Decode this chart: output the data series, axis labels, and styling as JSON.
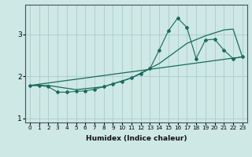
{
  "xlabel": "Humidex (Indice chaleur)",
  "ylabel": "",
  "bg_color": "#cde8e5",
  "grid_color": "#aaccca",
  "line_color": "#1a6b5e",
  "xlim": [
    -0.5,
    23.5
  ],
  "ylim": [
    0.9,
    3.7
  ],
  "yticks": [
    1,
    2,
    3
  ],
  "xticks": [
    0,
    1,
    2,
    3,
    4,
    5,
    6,
    7,
    8,
    9,
    10,
    11,
    12,
    13,
    14,
    15,
    16,
    17,
    18,
    19,
    20,
    21,
    22,
    23
  ],
  "line1_x": [
    0,
    1,
    2,
    3,
    4,
    5,
    6,
    7,
    8,
    9,
    10,
    11,
    12,
    13,
    14,
    15,
    16,
    17,
    18,
    19,
    20,
    21,
    22,
    23
  ],
  "line1_y": [
    1.78,
    1.78,
    1.75,
    1.62,
    1.62,
    1.64,
    1.65,
    1.69,
    1.75,
    1.82,
    1.88,
    1.96,
    2.06,
    2.18,
    2.62,
    3.08,
    3.38,
    3.16,
    2.42,
    2.86,
    2.88,
    2.62,
    2.42,
    2.46
  ],
  "line2_x": [
    0,
    2,
    5,
    8,
    11,
    14,
    17,
    19,
    21,
    22,
    23
  ],
  "line2_y": [
    1.78,
    1.78,
    1.68,
    1.75,
    1.96,
    2.3,
    2.78,
    2.96,
    3.1,
    3.12,
    2.46
  ],
  "line3_x": [
    0,
    23
  ],
  "line3_y": [
    1.78,
    2.46
  ]
}
